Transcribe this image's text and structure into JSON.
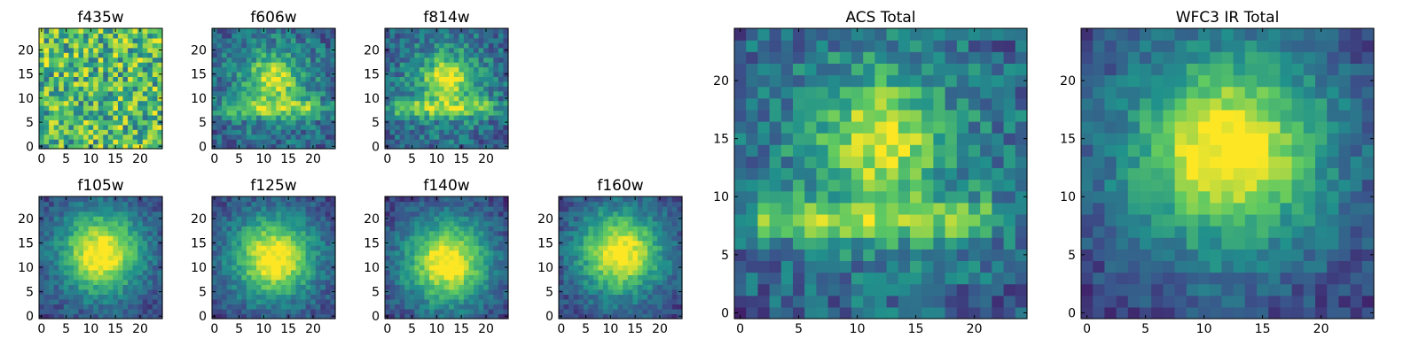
{
  "chart_data": [
    {
      "type": "heatmap",
      "title": "f435w",
      "xlim": [
        0,
        24
      ],
      "ylim": [
        0,
        24
      ],
      "xticks": [
        "0",
        "5",
        "10",
        "15",
        "20"
      ],
      "yticks": [
        "0",
        "5",
        "10",
        "15",
        "20"
      ],
      "grid": false,
      "structure": "noise"
    },
    {
      "type": "heatmap",
      "title": "f606w",
      "xlim": [
        0,
        24
      ],
      "ylim": [
        0,
        24
      ],
      "xticks": [
        "0",
        "5",
        "10",
        "15",
        "20"
      ],
      "yticks": [
        "0",
        "5",
        "10",
        "15",
        "20"
      ],
      "grid": false,
      "structure": "arc",
      "center": [
        12,
        13
      ]
    },
    {
      "type": "heatmap",
      "title": "f814w",
      "xlim": [
        0,
        24
      ],
      "ylim": [
        0,
        24
      ],
      "xticks": [
        "0",
        "5",
        "10",
        "15",
        "20"
      ],
      "yticks": [
        "0",
        "5",
        "10",
        "15",
        "20"
      ],
      "grid": false,
      "structure": "arc",
      "center": [
        12,
        13
      ]
    },
    {
      "type": "heatmap",
      "title": "f105w",
      "xlim": [
        0,
        24
      ],
      "ylim": [
        0,
        24
      ],
      "xticks": [
        "0",
        "5",
        "10",
        "15",
        "20"
      ],
      "yticks": [
        "0",
        "5",
        "10",
        "15",
        "20"
      ],
      "grid": false,
      "structure": "blob",
      "center": [
        12,
        13
      ]
    },
    {
      "type": "heatmap",
      "title": "f125w",
      "xlim": [
        0,
        24
      ],
      "ylim": [
        0,
        24
      ],
      "xticks": [
        "0",
        "5",
        "10",
        "15",
        "20"
      ],
      "yticks": [
        "0",
        "5",
        "10",
        "15",
        "20"
      ],
      "grid": false,
      "structure": "blob",
      "center": [
        12,
        12
      ]
    },
    {
      "type": "heatmap",
      "title": "f140w",
      "xlim": [
        0,
        24
      ],
      "ylim": [
        0,
        24
      ],
      "xticks": [
        "0",
        "5",
        "10",
        "15",
        "20"
      ],
      "yticks": [
        "0",
        "5",
        "10",
        "15",
        "20"
      ],
      "grid": false,
      "structure": "blob",
      "center": [
        12,
        11
      ]
    },
    {
      "type": "heatmap",
      "title": "f160w",
      "xlim": [
        0,
        24
      ],
      "ylim": [
        0,
        24
      ],
      "xticks": [
        "0",
        "5",
        "10",
        "15",
        "20"
      ],
      "yticks": [
        "0",
        "5",
        "10",
        "15",
        "20"
      ],
      "grid": false,
      "structure": "blob",
      "center": [
        12,
        13
      ]
    },
    {
      "type": "heatmap",
      "title": "ACS Total",
      "xlim": [
        0,
        24
      ],
      "ylim": [
        0,
        24
      ],
      "xticks": [
        "0",
        "5",
        "10",
        "15",
        "20"
      ],
      "yticks": [
        "0",
        "5",
        "10",
        "15",
        "20"
      ],
      "grid": false,
      "structure": "arc",
      "center": [
        12,
        14
      ]
    },
    {
      "type": "heatmap",
      "title": "WFC3 IR Total",
      "xlim": [
        0,
        24
      ],
      "ylim": [
        0,
        24
      ],
      "xticks": [
        "0",
        "5",
        "10",
        "15",
        "20"
      ],
      "yticks": [
        "0",
        "5",
        "10",
        "15",
        "20"
      ],
      "grid": false,
      "structure": "blob",
      "center": [
        12,
        14
      ]
    }
  ],
  "colormap": [
    "#440154",
    "#3b528b",
    "#21918c",
    "#5ec962",
    "#fde725"
  ]
}
